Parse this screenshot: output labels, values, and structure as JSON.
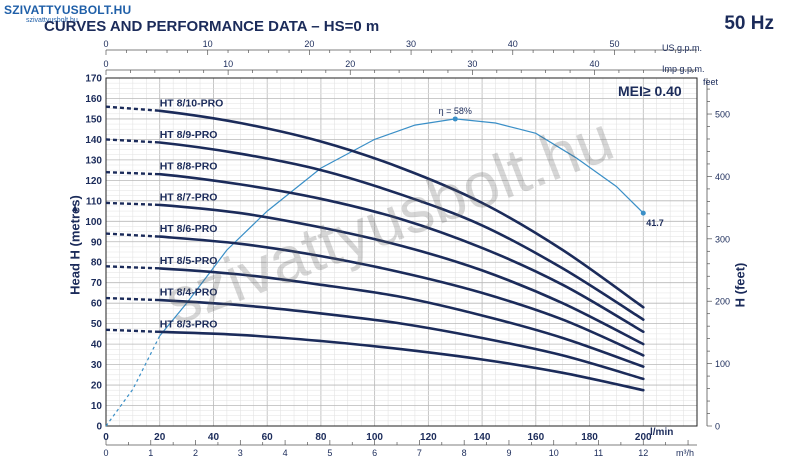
{
  "watermark": {
    "logo": "SZIVATTYUSBOLT.HU",
    "logo_sub": "szivattyusbolt.hu",
    "big": "szivattyusbolt.hu"
  },
  "header": {
    "title": "CURVES AND PERFORMANCE DATA  –  HS=0 m",
    "frequency": "50 Hz",
    "mei": "MEI≥ 0.40"
  },
  "colors": {
    "curve": "#1b2b5a",
    "efficiency": "#3a8fc7",
    "grid": "#c8c8c8",
    "text": "#1b2b5a"
  },
  "chart_data": {
    "type": "line",
    "xlabel": "l/min",
    "ylabel": "Head H (metres)",
    "ylabel_right": "H (feet)",
    "xlim": [
      0,
      220
    ],
    "ylim": [
      0,
      170
    ],
    "grid": true,
    "axes": {
      "x_lmin": {
        "unit": "l/min",
        "ticks": [
          0,
          20,
          40,
          60,
          80,
          100,
          120,
          140,
          160,
          180,
          200
        ]
      },
      "x_m3h": {
        "unit": "m³/h",
        "ticks": [
          0,
          1,
          2,
          3,
          4,
          5,
          6,
          7,
          8,
          9,
          10,
          11,
          12
        ]
      },
      "x_usgpm": {
        "unit": "US g.p.m.",
        "ticks": [
          0,
          10,
          20,
          30,
          40,
          50
        ]
      },
      "x_impgpm": {
        "unit": "Imp g.p.m.",
        "ticks": [
          0,
          10,
          20,
          30,
          40
        ]
      },
      "y_metres": {
        "ticks": [
          0,
          10,
          20,
          30,
          40,
          50,
          60,
          70,
          80,
          90,
          100,
          110,
          120,
          130,
          140,
          150,
          160,
          170
        ]
      },
      "y_feet": {
        "unit": "feet",
        "ticks": [
          0,
          100,
          200,
          300,
          400,
          500
        ]
      }
    },
    "series": [
      {
        "name": "HT 8/10-PRO",
        "x": [
          0,
          20,
          50,
          80,
          110,
          140,
          170,
          200
        ],
        "y": [
          156,
          154,
          148,
          139,
          126,
          109,
          86,
          58
        ]
      },
      {
        "name": "HT 8/9-PRO",
        "x": [
          0,
          20,
          50,
          80,
          110,
          140,
          170,
          200
        ],
        "y": [
          140,
          138.5,
          133,
          125,
          113,
          98,
          77,
          52
        ]
      },
      {
        "name": "HT 8/8-PRO",
        "x": [
          0,
          20,
          50,
          80,
          110,
          140,
          170,
          200
        ],
        "y": [
          124,
          123,
          118,
          111,
          101,
          87,
          69,
          46
        ]
      },
      {
        "name": "HT 8/7-PRO",
        "x": [
          0,
          20,
          50,
          80,
          110,
          140,
          170,
          200
        ],
        "y": [
          109,
          108,
          104,
          97,
          88,
          76,
          60,
          40
        ]
      },
      {
        "name": "HT 8/6-PRO",
        "x": [
          0,
          20,
          50,
          80,
          110,
          140,
          170,
          200
        ],
        "y": [
          94,
          92.5,
          89,
          83,
          75,
          65,
          52,
          34.5
        ]
      },
      {
        "name": "HT 8/5-PRO",
        "x": [
          0,
          20,
          50,
          80,
          110,
          140,
          170,
          200
        ],
        "y": [
          78,
          77,
          74,
          69,
          63,
          54,
          43,
          29
        ]
      },
      {
        "name": "HT 8/4-PRO",
        "x": [
          0,
          20,
          50,
          80,
          110,
          140,
          170,
          200
        ],
        "y": [
          62.5,
          61.5,
          59,
          55,
          50,
          43,
          34.5,
          23
        ]
      },
      {
        "name": "HT 8/3-PRO",
        "x": [
          0,
          20,
          50,
          80,
          110,
          140,
          170,
          200
        ],
        "y": [
          47,
          46,
          44.5,
          41.5,
          37.5,
          32.5,
          26,
          17.5
        ]
      }
    ],
    "efficiency": {
      "unit": "%",
      "x": [
        0,
        10,
        20,
        30,
        45,
        60,
        80,
        100,
        115,
        130,
        145,
        160,
        175,
        190,
        200
      ],
      "y": [
        0,
        18,
        44,
        60,
        86,
        105,
        126,
        140,
        147,
        150,
        148,
        143,
        131,
        117,
        104
      ],
      "peak_label": "η = 58%",
      "peak_x": 130,
      "end_label": "41.7",
      "end_x": 200
    }
  }
}
